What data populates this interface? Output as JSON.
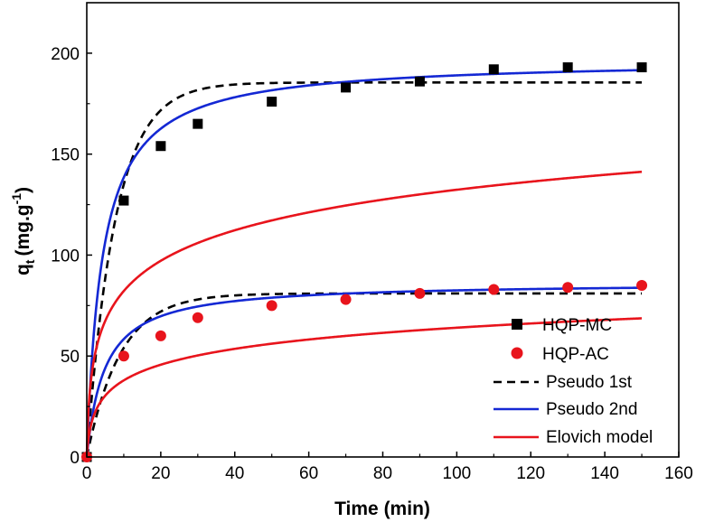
{
  "chart_data": {
    "type": "scatter",
    "title": "",
    "xlabel": "Time (min)",
    "ylabel_main": "q",
    "ylabel_sub": "t",
    "ylabel_unit_open": "(mg.g",
    "ylabel_sup": "-1",
    "ylabel_unit_close": ")",
    "xlim": [
      0,
      160
    ],
    "ylim": [
      0,
      225
    ],
    "xticks": [
      0,
      20,
      40,
      60,
      80,
      100,
      120,
      140,
      160
    ],
    "yticks": [
      0,
      50,
      100,
      150,
      200
    ],
    "grid": false,
    "legend_position": "right",
    "series": [
      {
        "name": "HQP-MC",
        "kind": "markers",
        "marker": "square",
        "color": "#000000",
        "x": [
          0,
          10,
          20,
          30,
          50,
          70,
          90,
          110,
          130,
          150
        ],
        "y": [
          0,
          127,
          154,
          165,
          176,
          183,
          186,
          192,
          193,
          193
        ]
      },
      {
        "name": "HQP-AC",
        "kind": "markers",
        "marker": "circle",
        "color": "#e8141c",
        "x": [
          0,
          10,
          20,
          30,
          50,
          70,
          90,
          110,
          130,
          150
        ],
        "y": [
          0,
          50,
          60,
          69,
          75,
          78,
          81,
          83,
          84,
          85
        ]
      },
      {
        "name": "Pseudo 1st",
        "kind": "model",
        "style": "dashed",
        "color": "#000000",
        "params": [
          {
            "model": "pfo",
            "qe": 185.5,
            "k1": 0.13
          },
          {
            "model": "pfo",
            "qe": 81,
            "k1": 0.11
          }
        ]
      },
      {
        "name": "Pseudo 2nd",
        "kind": "model",
        "style": "solid",
        "color": "#1428d4",
        "params": [
          {
            "model": "pso",
            "qe": 197,
            "k2": 0.0012
          },
          {
            "model": "pso",
            "qe": 86.5,
            "k2": 0.0024
          }
        ]
      },
      {
        "name": "Elovich model",
        "kind": "model",
        "style": "solid",
        "color": "#e8141c",
        "params": [
          {
            "model": "elovich",
            "a": 90,
            "b": 22
          },
          {
            "model": "elovich",
            "a": 30,
            "b": 11.5
          }
        ]
      }
    ]
  }
}
